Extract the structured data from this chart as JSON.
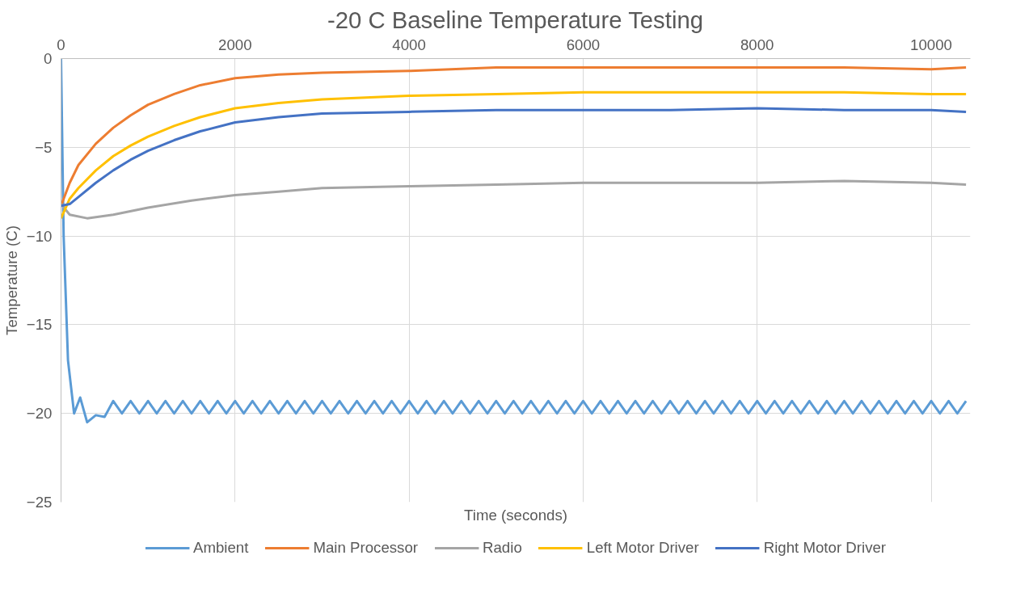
{
  "chart_data": {
    "type": "line",
    "title": "-20 C Baseline Temperature Testing",
    "xlabel": "Time (seconds)",
    "ylabel": "Temperature (C)",
    "xlim": [
      0,
      10450
    ],
    "ylim": [
      -25,
      0
    ],
    "xticks": [
      0,
      2000,
      4000,
      6000,
      8000,
      10000
    ],
    "yticks": [
      -25,
      -20,
      -15,
      -10,
      -5,
      0
    ],
    "grid": true,
    "legend": "bottom",
    "marker": "none",
    "line_style": "solid",
    "series": [
      {
        "name": "Ambient",
        "color": "#5b9bd5",
        "x": [
          0,
          30,
          80,
          150,
          220,
          300,
          400,
          500,
          600,
          700,
          800,
          900,
          1000,
          1100,
          1200,
          1300,
          1400,
          1500,
          1600,
          1700,
          1800,
          1900,
          2000,
          2100,
          2200,
          2300,
          2400,
          2500,
          2600,
          2700,
          2800,
          2900,
          3000,
          3100,
          3200,
          3300,
          3400,
          3500,
          3600,
          3700,
          3800,
          3900,
          4000,
          4100,
          4200,
          4300,
          4400,
          4500,
          4600,
          4700,
          4800,
          4900,
          5000,
          5100,
          5200,
          5300,
          5400,
          5500,
          5600,
          5700,
          5800,
          5900,
          6000,
          6100,
          6200,
          6300,
          6400,
          6500,
          6600,
          6700,
          6800,
          6900,
          7000,
          7100,
          7200,
          7300,
          7400,
          7500,
          7600,
          7700,
          7800,
          7900,
          8000,
          8100,
          8200,
          8300,
          8400,
          8500,
          8600,
          8700,
          8800,
          8900,
          9000,
          9100,
          9200,
          9300,
          9400,
          9500,
          9600,
          9700,
          9800,
          9900,
          10000,
          10100,
          10200,
          10300,
          10400
        ],
        "values": [
          0,
          -10,
          -17,
          -20,
          -19.1,
          -20.5,
          -20.1,
          -20.2,
          -19.3,
          -20.0,
          -19.3,
          -20.0,
          -19.3,
          -20.0,
          -19.3,
          -20.0,
          -19.3,
          -20.0,
          -19.3,
          -20.0,
          -19.3,
          -20.0,
          -19.3,
          -20.0,
          -19.3,
          -20.0,
          -19.3,
          -20.0,
          -19.3,
          -20.0,
          -19.3,
          -20.0,
          -19.3,
          -20.0,
          -19.3,
          -20.0,
          -19.3,
          -20.0,
          -19.3,
          -20.0,
          -19.3,
          -20.0,
          -19.3,
          -20.0,
          -19.3,
          -20.0,
          -19.3,
          -20.0,
          -19.3,
          -20.0,
          -19.3,
          -20.0,
          -19.3,
          -20.0,
          -19.3,
          -20.0,
          -19.3,
          -20.0,
          -19.3,
          -20.0,
          -19.3,
          -20.0,
          -19.3,
          -20.0,
          -19.3,
          -20.0,
          -19.3,
          -20.0,
          -19.3,
          -20.0,
          -19.3,
          -20.0,
          -19.3,
          -20.0,
          -19.3,
          -20.0,
          -19.3,
          -20.0,
          -19.3,
          -20.0,
          -19.3,
          -20.0,
          -19.3,
          -20.0,
          -19.3,
          -20.0,
          -19.3,
          -20.0,
          -19.3,
          -20.0,
          -19.3,
          -20.0,
          -19.3,
          -20.0,
          -19.3,
          -20.0,
          -19.3,
          -20.0,
          -19.3,
          -20.0,
          -19.3,
          -20.0,
          -19.3,
          -20.0,
          -19.3,
          -20.0,
          -19.3
        ]
      },
      {
        "name": "Main Processor",
        "color": "#ed7d31",
        "x": [
          0,
          100,
          200,
          400,
          600,
          800,
          1000,
          1300,
          1600,
          2000,
          2500,
          3000,
          4000,
          5000,
          6000,
          7000,
          8000,
          9000,
          10000,
          10400
        ],
        "values": [
          -8.3,
          -7,
          -6,
          -4.8,
          -3.9,
          -3.2,
          -2.6,
          -2.0,
          -1.5,
          -1.1,
          -0.9,
          -0.8,
          -0.7,
          -0.5,
          -0.5,
          -0.5,
          -0.5,
          -0.5,
          -0.6,
          -0.5
        ]
      },
      {
        "name": "Radio",
        "color": "#a5a5a5",
        "x": [
          0,
          100,
          300,
          600,
          1000,
          1500,
          2000,
          2500,
          3000,
          4000,
          5000,
          6000,
          7000,
          8000,
          9000,
          10000,
          10400
        ],
        "values": [
          -8.2,
          -8.8,
          -9.0,
          -8.8,
          -8.4,
          -8.0,
          -7.7,
          -7.5,
          -7.3,
          -7.2,
          -7.1,
          -7.0,
          -7.0,
          -7.0,
          -6.9,
          -7.0,
          -7.1
        ]
      },
      {
        "name": "Left Motor Driver",
        "color": "#ffc000",
        "x": [
          0,
          100,
          200,
          400,
          600,
          800,
          1000,
          1300,
          1600,
          2000,
          2500,
          3000,
          4000,
          5000,
          6000,
          7000,
          8000,
          9000,
          10000,
          10400
        ],
        "values": [
          -9,
          -7.9,
          -7.3,
          -6.3,
          -5.5,
          -4.9,
          -4.4,
          -3.8,
          -3.3,
          -2.8,
          -2.5,
          -2.3,
          -2.1,
          -2.0,
          -1.9,
          -1.9,
          -1.9,
          -1.9,
          -2.0,
          -2.0
        ]
      },
      {
        "name": "Right Motor Driver",
        "color": "#4472c4",
        "x": [
          0,
          100,
          200,
          400,
          600,
          800,
          1000,
          1300,
          1600,
          2000,
          2500,
          3000,
          4000,
          5000,
          6000,
          7000,
          8000,
          9000,
          10000,
          10400
        ],
        "values": [
          -8.3,
          -8.2,
          -7.8,
          -7.0,
          -6.3,
          -5.7,
          -5.2,
          -4.6,
          -4.1,
          -3.6,
          -3.3,
          -3.1,
          -3.0,
          -2.9,
          -2.9,
          -2.9,
          -2.8,
          -2.9,
          -2.9,
          -3.0
        ]
      }
    ]
  }
}
